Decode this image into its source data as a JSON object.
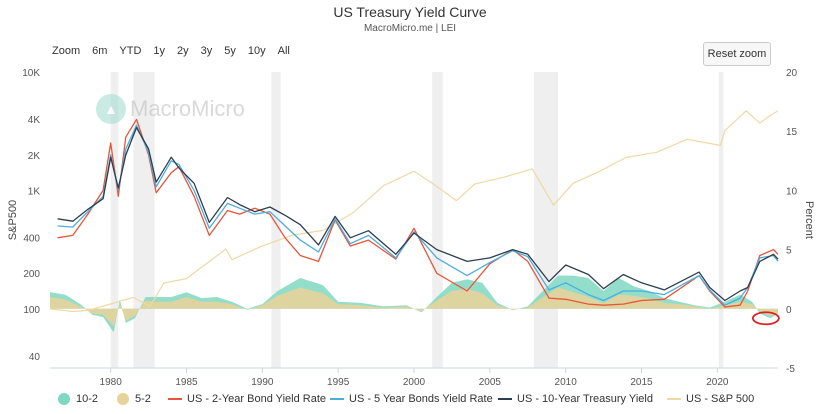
{
  "title": "US Treasury Yield Curve",
  "subtitle": "MacroMicro.me | LEI",
  "zoom": {
    "label": "Zoom",
    "buttons": [
      "6m",
      "YTD",
      "1y",
      "2y",
      "3y",
      "5y",
      "10y",
      "All"
    ]
  },
  "reset_label": "Reset zoom",
  "watermark": "MacroMicro",
  "legend": [
    {
      "label": "10-2",
      "color": "#7fd8c2",
      "kind": "dot"
    },
    {
      "label": "5-2",
      "color": "#e6d39b",
      "kind": "dot"
    },
    {
      "label": "US - 2-Year Bond Yield Rate",
      "color": "#e8553a",
      "kind": "line"
    },
    {
      "label": "US - 5 Year Bonds Yield Rate",
      "color": "#4aaee0",
      "kind": "line"
    },
    {
      "label": "US - 10-Year Treasury Yield",
      "color": "#2d3e50",
      "kind": "line"
    },
    {
      "label": "US - S&P 500",
      "color": "#efd9a4",
      "kind": "line"
    }
  ],
  "chart_data": {
    "type": "line",
    "x_ticks": [
      "1980",
      "1985",
      "1990",
      "1995",
      "2000",
      "2005",
      "2010",
      "2015",
      "2020"
    ],
    "x_range": [
      1976.0,
      2024.0
    ],
    "y_left": {
      "label": "S&P500",
      "scale": "log",
      "ticks": [
        "40",
        "100",
        "200",
        "400",
        "1K",
        "2K",
        "4K",
        "10K"
      ],
      "tick_values": [
        40,
        100,
        200,
        400,
        1000,
        2000,
        4000,
        10000
      ],
      "range": [
        40,
        10000
      ]
    },
    "y_right": {
      "label": "Percent",
      "ticks": [
        "-5",
        "0",
        "5",
        "10",
        "15",
        "20"
      ],
      "tick_values": [
        -5,
        0,
        5,
        10,
        15,
        20
      ],
      "range": [
        -5,
        20
      ]
    },
    "recessions": [
      [
        1980.0,
        1980.5
      ],
      [
        1981.5,
        1982.9
      ],
      [
        1990.6,
        1991.2
      ],
      [
        2001.2,
        2001.9
      ],
      [
        2007.9,
        2009.5
      ],
      [
        2020.1,
        2020.4
      ]
    ],
    "series": [
      {
        "name": "US - 10-Year Treasury Yield",
        "axis": "right",
        "x": [
          1976.5,
          1977.5,
          1978.5,
          1979.5,
          1980.0,
          1980.5,
          1981.0,
          1981.7,
          1982.5,
          1983.0,
          1984.0,
          1984.5,
          1985.5,
          1986.5,
          1987.7,
          1988.5,
          1989.5,
          1990.5,
          1991.5,
          1992.5,
          1993.7,
          1994.8,
          1995.8,
          1997.0,
          1998.8,
          2000.0,
          2001.5,
          2003.5,
          2005.0,
          2006.5,
          2007.5,
          2008.9,
          2010.0,
          2011.5,
          2012.5,
          2013.8,
          2015.0,
          2016.5,
          2018.8,
          2019.5,
          2020.5,
          2021.5,
          2022.0,
          2022.8,
          2023.7,
          2024.0
        ],
        "values": [
          7.6,
          7.4,
          8.4,
          9.3,
          12.8,
          10.2,
          13.0,
          15.3,
          13.5,
          10.7,
          12.8,
          11.9,
          10.6,
          7.3,
          9.4,
          8.8,
          8.2,
          8.6,
          7.9,
          7.1,
          5.4,
          7.8,
          6.0,
          6.6,
          4.6,
          6.4,
          5.0,
          4.0,
          4.3,
          5.0,
          4.6,
          2.3,
          3.7,
          2.9,
          1.7,
          2.9,
          2.2,
          1.6,
          3.1,
          1.8,
          0.7,
          1.5,
          1.8,
          4.0,
          4.6,
          4.2
        ]
      },
      {
        "name": "US - 5 Year Bonds Yield Rate",
        "axis": "right",
        "x": [
          1976.5,
          1977.5,
          1978.5,
          1979.5,
          1980.0,
          1980.5,
          1981.0,
          1981.7,
          1982.5,
          1983.0,
          1984.0,
          1984.5,
          1985.5,
          1986.5,
          1987.7,
          1988.5,
          1989.5,
          1990.5,
          1991.5,
          1992.5,
          1993.7,
          1994.8,
          1995.8,
          1997.0,
          1998.8,
          2000.0,
          2001.5,
          2003.5,
          2005.0,
          2006.5,
          2007.5,
          2008.9,
          2010.0,
          2011.5,
          2012.5,
          2013.8,
          2015.0,
          2016.5,
          2018.8,
          2019.5,
          2020.5,
          2021.5,
          2022.0,
          2022.8,
          2023.7,
          2024.0
        ],
        "values": [
          7.0,
          6.9,
          8.2,
          9.5,
          13.0,
          10.0,
          13.5,
          15.5,
          13.2,
          10.3,
          12.5,
          12.2,
          10.0,
          6.8,
          8.9,
          8.5,
          8.0,
          8.2,
          7.0,
          5.8,
          4.8,
          7.6,
          5.5,
          6.2,
          4.3,
          6.5,
          4.3,
          2.8,
          3.9,
          4.9,
          4.4,
          1.6,
          2.2,
          1.2,
          0.7,
          1.5,
          1.5,
          1.2,
          2.8,
          1.6,
          0.3,
          0.9,
          1.8,
          4.3,
          4.5,
          4.0
        ]
      },
      {
        "name": "US - 2-Year Bond Yield Rate",
        "axis": "right",
        "x": [
          1976.5,
          1977.5,
          1978.5,
          1979.5,
          1980.0,
          1980.5,
          1981.0,
          1981.7,
          1982.5,
          1983.0,
          1984.0,
          1984.5,
          1985.5,
          1986.5,
          1987.7,
          1988.5,
          1989.5,
          1990.5,
          1991.5,
          1992.5,
          1993.7,
          1994.8,
          1995.8,
          1997.0,
          1998.8,
          2000.0,
          2001.5,
          2003.5,
          2005.0,
          2006.5,
          2007.5,
          2008.9,
          2010.0,
          2011.5,
          2012.5,
          2013.8,
          2015.0,
          2016.5,
          2018.8,
          2019.5,
          2020.5,
          2021.5,
          2022.0,
          2022.8,
          2023.7,
          2024.0
        ],
        "values": [
          6.0,
          6.2,
          8.0,
          10.0,
          14.0,
          9.5,
          14.5,
          16.0,
          13.0,
          9.8,
          11.5,
          12.0,
          9.5,
          6.2,
          8.3,
          8.0,
          8.5,
          8.0,
          6.0,
          4.5,
          4.0,
          7.5,
          5.3,
          5.8,
          4.2,
          6.8,
          3.0,
          1.5,
          3.8,
          5.0,
          4.0,
          0.9,
          0.8,
          0.4,
          0.3,
          0.4,
          0.7,
          0.8,
          2.8,
          1.5,
          0.15,
          0.3,
          1.5,
          4.5,
          5.0,
          4.6
        ]
      },
      {
        "name": "US - S&P 500",
        "axis": "left",
        "x": [
          1976.0,
          1977.5,
          1978.5,
          1980.0,
          1981.5,
          1982.6,
          1983.5,
          1985.0,
          1987.6,
          1988.0,
          1990.0,
          1992.0,
          1994.0,
          1996.0,
          1998.0,
          2000.0,
          2001.0,
          2002.8,
          2004.0,
          2006.0,
          2007.8,
          2009.2,
          2010.5,
          2012.0,
          2014.0,
          2016.0,
          2018.0,
          2020.2,
          2020.5,
          2021.9,
          2022.8,
          2023.5,
          2024.0
        ],
        "values": [
          100,
          95,
          97,
          110,
          125,
          105,
          165,
          180,
          320,
          260,
          340,
          420,
          460,
          650,
          1100,
          1450,
          1200,
          820,
          1130,
          1300,
          1520,
          750,
          1150,
          1400,
          1900,
          2100,
          2700,
          2400,
          3200,
          4700,
          3700,
          4300,
          4700
        ]
      },
      {
        "name": "10-2",
        "axis": "right",
        "x": [
          1976.0,
          1977.0,
          1978.0,
          1978.8,
          1979.5,
          1980.2,
          1980.6,
          1981.0,
          1981.6,
          1982.3,
          1983.0,
          1984.0,
          1985.0,
          1986.0,
          1987.0,
          1988.0,
          1989.0,
          1990.0,
          1991.0,
          1992.5,
          1994.0,
          1995.0,
          1996.5,
          1998.0,
          1999.5,
          2000.5,
          2001.5,
          2002.5,
          2003.5,
          2004.5,
          2005.5,
          2006.5,
          2007.5,
          2008.5,
          2009.5,
          2010.5,
          2011.5,
          2012.5,
          2013.5,
          2014.5,
          2015.5,
          2016.5,
          2017.5,
          2018.5,
          2019.5,
          2020.5,
          2021.5,
          2022.3,
          2022.8,
          2023.5,
          2024.0
        ],
        "values": [
          1.4,
          1.2,
          0.4,
          -0.5,
          -0.7,
          -2.0,
          0.8,
          -1.2,
          -0.8,
          1.0,
          1.0,
          1.0,
          1.4,
          0.9,
          1.0,
          0.6,
          0.0,
          0.4,
          1.5,
          2.6,
          2.0,
          0.6,
          0.5,
          0.2,
          0.3,
          -0.3,
          1.0,
          2.2,
          2.5,
          2.2,
          0.5,
          -0.1,
          0.2,
          1.5,
          2.8,
          2.8,
          2.6,
          1.5,
          2.6,
          1.9,
          1.5,
          0.9,
          0.6,
          0.3,
          0.1,
          0.6,
          1.2,
          0.6,
          -0.4,
          -0.8,
          -0.4
        ]
      },
      {
        "name": "5-2",
        "axis": "right",
        "x": [
          1976.0,
          1977.0,
          1978.0,
          1978.8,
          1979.5,
          1980.2,
          1980.6,
          1981.0,
          1981.6,
          1982.3,
          1983.0,
          1984.0,
          1985.0,
          1986.0,
          1987.0,
          1988.0,
          1989.0,
          1990.0,
          1991.0,
          1992.5,
          1994.0,
          1995.0,
          1996.5,
          1998.0,
          1999.5,
          2000.5,
          2001.5,
          2002.5,
          2003.5,
          2004.5,
          2005.5,
          2006.5,
          2007.5,
          2008.5,
          2009.5,
          2010.5,
          2011.5,
          2012.5,
          2013.5,
          2014.5,
          2015.5,
          2016.5,
          2017.5,
          2018.5,
          2019.5,
          2020.5,
          2021.5,
          2022.3,
          2022.8,
          2023.5,
          2024.0
        ],
        "values": [
          1.0,
          0.8,
          0.2,
          -0.4,
          -0.5,
          -1.5,
          0.5,
          -1.0,
          -0.6,
          0.7,
          0.6,
          0.6,
          1.0,
          0.6,
          0.6,
          0.4,
          -0.1,
          0.3,
          1.1,
          1.8,
          1.3,
          0.4,
          0.3,
          0.1,
          0.2,
          -0.2,
          0.7,
          1.5,
          1.7,
          1.3,
          0.3,
          -0.1,
          0.1,
          1.0,
          1.8,
          1.4,
          1.0,
          0.5,
          1.2,
          1.1,
          0.9,
          0.5,
          0.4,
          0.2,
          0.0,
          0.3,
          0.6,
          0.4,
          -0.2,
          -0.6,
          -0.4
        ]
      }
    ]
  }
}
